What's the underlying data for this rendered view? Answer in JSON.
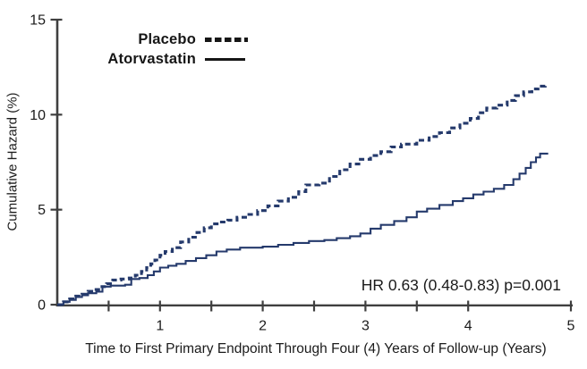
{
  "colors": {
    "curve": "#253a6c",
    "axis": "#3f3f3f",
    "text": "#1b1b1b",
    "legend_line": "#161616"
  },
  "chart_data": {
    "type": "line",
    "subtype": "step-cumulative-hazard",
    "title": "",
    "xlabel": "Time to First Primary Endpoint Through Four (4) Years of Follow-up (Years)",
    "ylabel": "Cumulative Hazard (%)",
    "xlim": [
      0,
      5
    ],
    "ylim": [
      0,
      15
    ],
    "x_ticks_labeled": [
      1,
      2,
      3,
      4,
      5
    ],
    "x_ticks_minor": [
      0.5,
      1.5,
      2.5,
      3.5
    ],
    "y_ticks": [
      0,
      5,
      10,
      15
    ],
    "grid": false,
    "legend_position": "top-left-inside",
    "annotation": "HR 0.63 (0.48-0.83)  p=0.001",
    "series": [
      {
        "name": "Placebo",
        "style": "dashed",
        "points": [
          [
            0,
            0
          ],
          [
            0.06,
            0.15
          ],
          [
            0.12,
            0.3
          ],
          [
            0.18,
            0.45
          ],
          [
            0.24,
            0.55
          ],
          [
            0.3,
            0.7
          ],
          [
            0.36,
            0.8
          ],
          [
            0.42,
            0.95
          ],
          [
            0.48,
            1.1
          ],
          [
            0.54,
            1.3
          ],
          [
            0.62,
            1.35
          ],
          [
            0.7,
            1.4
          ],
          [
            0.76,
            1.55
          ],
          [
            0.82,
            1.75
          ],
          [
            0.87,
            1.95
          ],
          [
            0.91,
            2.15
          ],
          [
            0.95,
            2.35
          ],
          [
            1.0,
            2.6
          ],
          [
            1.05,
            2.8
          ],
          [
            1.12,
            3.0
          ],
          [
            1.2,
            3.3
          ],
          [
            1.28,
            3.55
          ],
          [
            1.36,
            3.8
          ],
          [
            1.43,
            4.05
          ],
          [
            1.5,
            4.25
          ],
          [
            1.58,
            4.35
          ],
          [
            1.66,
            4.45
          ],
          [
            1.75,
            4.6
          ],
          [
            1.85,
            4.75
          ],
          [
            1.95,
            4.95
          ],
          [
            2.05,
            5.2
          ],
          [
            2.15,
            5.45
          ],
          [
            2.25,
            5.65
          ],
          [
            2.35,
            5.95
          ],
          [
            2.42,
            6.3
          ],
          [
            2.55,
            6.4
          ],
          [
            2.65,
            6.75
          ],
          [
            2.75,
            7.1
          ],
          [
            2.85,
            7.4
          ],
          [
            2.95,
            7.65
          ],
          [
            3.05,
            7.85
          ],
          [
            3.15,
            8.05
          ],
          [
            3.25,
            8.3
          ],
          [
            3.35,
            8.45
          ],
          [
            3.5,
            8.65
          ],
          [
            3.62,
            8.85
          ],
          [
            3.72,
            9.05
          ],
          [
            3.82,
            9.3
          ],
          [
            3.92,
            9.55
          ],
          [
            4.02,
            9.8
          ],
          [
            4.1,
            10.1
          ],
          [
            4.18,
            10.35
          ],
          [
            4.28,
            10.5
          ],
          [
            4.38,
            10.75
          ],
          [
            4.46,
            11.0
          ],
          [
            4.54,
            11.2
          ],
          [
            4.62,
            11.35
          ],
          [
            4.68,
            11.5
          ],
          [
            4.75,
            11.55
          ]
        ]
      },
      {
        "name": "Atorvastatin",
        "style": "solid",
        "points": [
          [
            0,
            0
          ],
          [
            0.06,
            0.15
          ],
          [
            0.12,
            0.25
          ],
          [
            0.18,
            0.4
          ],
          [
            0.24,
            0.5
          ],
          [
            0.3,
            0.6
          ],
          [
            0.38,
            0.68
          ],
          [
            0.44,
            0.95
          ],
          [
            0.52,
            1.0
          ],
          [
            0.66,
            1.05
          ],
          [
            0.72,
            1.35
          ],
          [
            0.8,
            1.4
          ],
          [
            0.88,
            1.55
          ],
          [
            0.94,
            1.75
          ],
          [
            1.0,
            1.95
          ],
          [
            1.08,
            2.05
          ],
          [
            1.16,
            2.15
          ],
          [
            1.25,
            2.3
          ],
          [
            1.35,
            2.45
          ],
          [
            1.45,
            2.6
          ],
          [
            1.55,
            2.8
          ],
          [
            1.65,
            2.9
          ],
          [
            1.78,
            3.0
          ],
          [
            2.0,
            3.05
          ],
          [
            2.15,
            3.15
          ],
          [
            2.3,
            3.25
          ],
          [
            2.45,
            3.35
          ],
          [
            2.6,
            3.4
          ],
          [
            2.72,
            3.5
          ],
          [
            2.85,
            3.6
          ],
          [
            2.95,
            3.75
          ],
          [
            3.05,
            4.0
          ],
          [
            3.15,
            4.2
          ],
          [
            3.28,
            4.4
          ],
          [
            3.4,
            4.6
          ],
          [
            3.5,
            4.9
          ],
          [
            3.6,
            5.05
          ],
          [
            3.72,
            5.25
          ],
          [
            3.85,
            5.45
          ],
          [
            3.95,
            5.6
          ],
          [
            4.05,
            5.8
          ],
          [
            4.15,
            5.95
          ],
          [
            4.25,
            6.1
          ],
          [
            4.35,
            6.3
          ],
          [
            4.44,
            6.6
          ],
          [
            4.5,
            6.9
          ],
          [
            4.56,
            7.2
          ],
          [
            4.61,
            7.5
          ],
          [
            4.66,
            7.75
          ],
          [
            4.7,
            7.95
          ],
          [
            4.77,
            8.0
          ]
        ]
      }
    ]
  }
}
